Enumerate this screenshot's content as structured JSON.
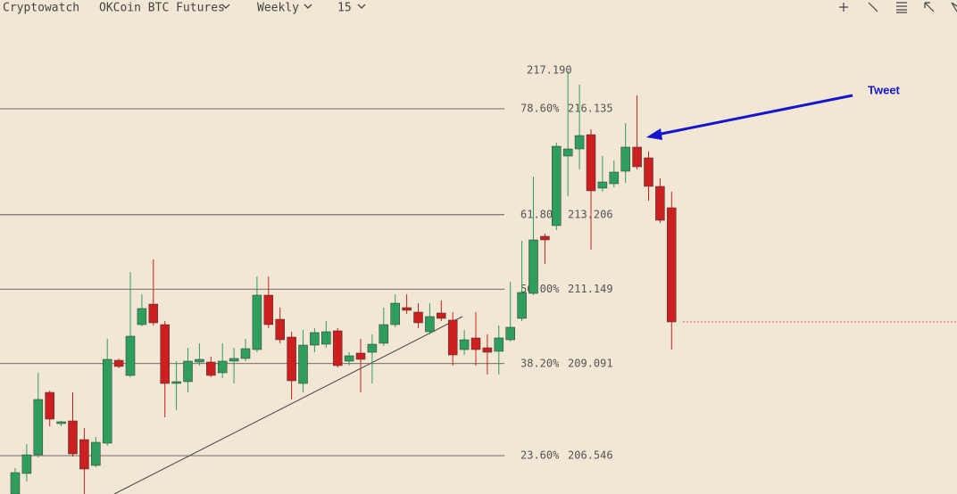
{
  "toolbar": {
    "brand": "Cryptowatch",
    "market": "OKCoin BTC Futures",
    "period": "Weekly",
    "interval": "15"
  },
  "chart_data": {
    "type": "candlestick",
    "open": [
      205.486,
      206.053,
      206.57,
      208.296,
      207.433,
      207.507,
      206.99,
      206.275,
      206.891,
      209.183,
      208.764,
      210.169,
      210.736,
      210.169,
      208.542,
      208.592,
      209.134,
      209.134,
      208.838,
      209.159,
      209.233,
      209.479,
      210.983,
      210.317,
      209.824,
      208.542,
      209.602,
      209.627,
      209.997,
      209.159,
      209.381,
      209.405,
      209.652,
      210.169,
      210.638,
      210.514,
      209.972,
      210.49,
      210.293,
      209.479,
      209.8,
      209.528,
      209.43,
      209.75,
      210.342,
      211.032,
      212.61,
      212.906,
      214.828,
      215.025,
      215.42,
      213.941,
      214.064,
      214.409,
      215.075,
      214.779,
      213.99,
      213.399
    ],
    "high": [
      206.201,
      206.866,
      208.838,
      208.345,
      207.507,
      208.296,
      207.31,
      207.063,
      209.775,
      209.233,
      211.624,
      211.007,
      211.969,
      210.268,
      209.159,
      209.528,
      209.652,
      209.282,
      209.652,
      209.528,
      209.775,
      211.5,
      211.5,
      210.638,
      209.972,
      210.021,
      210.071,
      210.268,
      210.071,
      209.405,
      209.775,
      209.898,
      210.638,
      211.007,
      211.007,
      210.761,
      210.761,
      210.835,
      210.514,
      210.021,
      210.514,
      209.898,
      210.145,
      211.353,
      212.486,
      214.261,
      212.684,
      215.198,
      217.17,
      216.8,
      215.568,
      214.828,
      214.705,
      215.74,
      216.504,
      214.951,
      214.212,
      213.842
    ],
    "low": [
      205.486,
      205.831,
      206.497,
      207.359,
      207.359,
      206.521,
      205.486,
      206.225,
      206.817,
      208.962,
      208.715,
      210.12,
      210.145,
      207.606,
      207.803,
      208.296,
      209.035,
      208.715,
      208.69,
      208.542,
      209.159,
      209.405,
      210.071,
      209.652,
      208.099,
      208.296,
      209.405,
      209.528,
      208.986,
      209.035,
      208.296,
      208.542,
      209.578,
      210.095,
      210.465,
      210.071,
      209.898,
      210.268,
      209.035,
      209.331,
      209.035,
      208.789,
      208.789,
      209.701,
      210.268,
      210.983,
      211.846,
      212.782,
      213.719,
      214.458,
      212.24,
      213.842,
      213.965,
      214.089,
      214.458,
      213.596,
      212.979,
      209.479
    ],
    "close": [
      206.077,
      206.57,
      208.099,
      207.556,
      207.483,
      206.595,
      206.176,
      206.916,
      209.208,
      209.011,
      209.849,
      210.613,
      210.219,
      208.542,
      208.592,
      209.159,
      209.208,
      208.764,
      209.159,
      209.233,
      209.504,
      210.983,
      210.169,
      209.75,
      208.616,
      209.602,
      209.948,
      209.972,
      209.035,
      209.307,
      209.208,
      209.627,
      210.169,
      210.761,
      210.564,
      210.219,
      210.391,
      210.342,
      209.331,
      209.75,
      209.479,
      209.405,
      209.8,
      210.095,
      211.057,
      212.511,
      212.511,
      215.099,
      215.025,
      215.395,
      213.867,
      214.113,
      214.385,
      215.075,
      214.532,
      213.99,
      213.053,
      210.243
    ],
    "ylim": [
      205.486,
      219.142
    ],
    "up_color": "#2f9e5c",
    "down_color": "#cc2020",
    "levels": [
      {
        "pct": "78.60%",
        "price": 216.135
      },
      {
        "pct": "61.80%",
        "price": 213.206
      },
      {
        "pct": "50.00%",
        "price": 211.149
      },
      {
        "pct": "38.20%",
        "price": 209.091
      },
      {
        "pct": "23.60%",
        "price": 206.546
      }
    ],
    "high_level": {
      "value": 217.19,
      "label": "217.190"
    },
    "annotation": "Tweet"
  }
}
